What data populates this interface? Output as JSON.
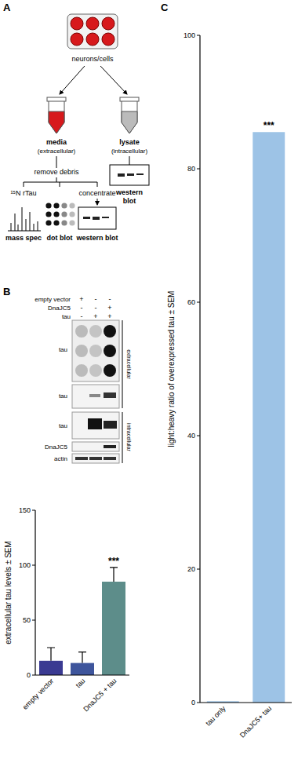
{
  "panel_labels": [
    "A",
    "B",
    "C"
  ],
  "diagram": {
    "source": "neurons/cells",
    "media": {
      "title": "media",
      "subtitle": "(extracellular)"
    },
    "lysate": {
      "title": "lysate",
      "subtitle": "(intracellular)",
      "assay_lines": [
        "western",
        "blot"
      ]
    },
    "step": "remove debris",
    "branches": [
      {
        "label": "¹⁵N rTau",
        "assay": "mass spec"
      },
      {
        "assay": "dot blot"
      },
      {
        "label": "concentrate",
        "assay": "western blot"
      }
    ]
  },
  "blots": {
    "conditions": [
      {
        "label": "empty vector",
        "signs": [
          "+",
          "-",
          "-"
        ]
      },
      {
        "label": "DnaJC5",
        "signs": [
          "-",
          "-",
          "+"
        ]
      },
      {
        "label": "tau",
        "signs": [
          "-",
          "+",
          "+"
        ]
      }
    ],
    "extracellular": {
      "label": "extracellular",
      "rows": [
        "tau",
        "tau"
      ]
    },
    "intracellular": {
      "label": "intracellular",
      "rows": [
        "tau",
        "DnaJC5",
        "actin"
      ]
    }
  },
  "chart_data": [
    {
      "type": "bar",
      "categories": [
        "empty vector",
        "tau",
        "DnaJC5 + tau"
      ],
      "values": [
        13,
        11,
        85
      ],
      "errors": [
        12,
        10,
        13
      ],
      "colors": [
        "#3a3a92",
        "#3e559c",
        "#5d8d8a"
      ],
      "y_label": "extracellular tau levels ± SEM",
      "ylim": [
        0,
        150
      ],
      "yticks": [
        0,
        50,
        100,
        150
      ],
      "annotations": [
        {
          "category": "DnaJC5 + tau",
          "text": "***"
        }
      ]
    },
    {
      "type": "bar",
      "categories": [
        "tau only",
        "DnaJC5+ tau"
      ],
      "values": [
        0.2,
        85.5
      ],
      "color": "#9dc3e6",
      "y_label": "light:heavy ratio of overexpressed tau ± SEM",
      "ylim": [
        0,
        100
      ],
      "yticks": [
        0,
        20,
        40,
        60,
        80,
        100
      ],
      "annotations": [
        {
          "category": "DnaJC5+ tau",
          "text": "***"
        }
      ]
    }
  ]
}
